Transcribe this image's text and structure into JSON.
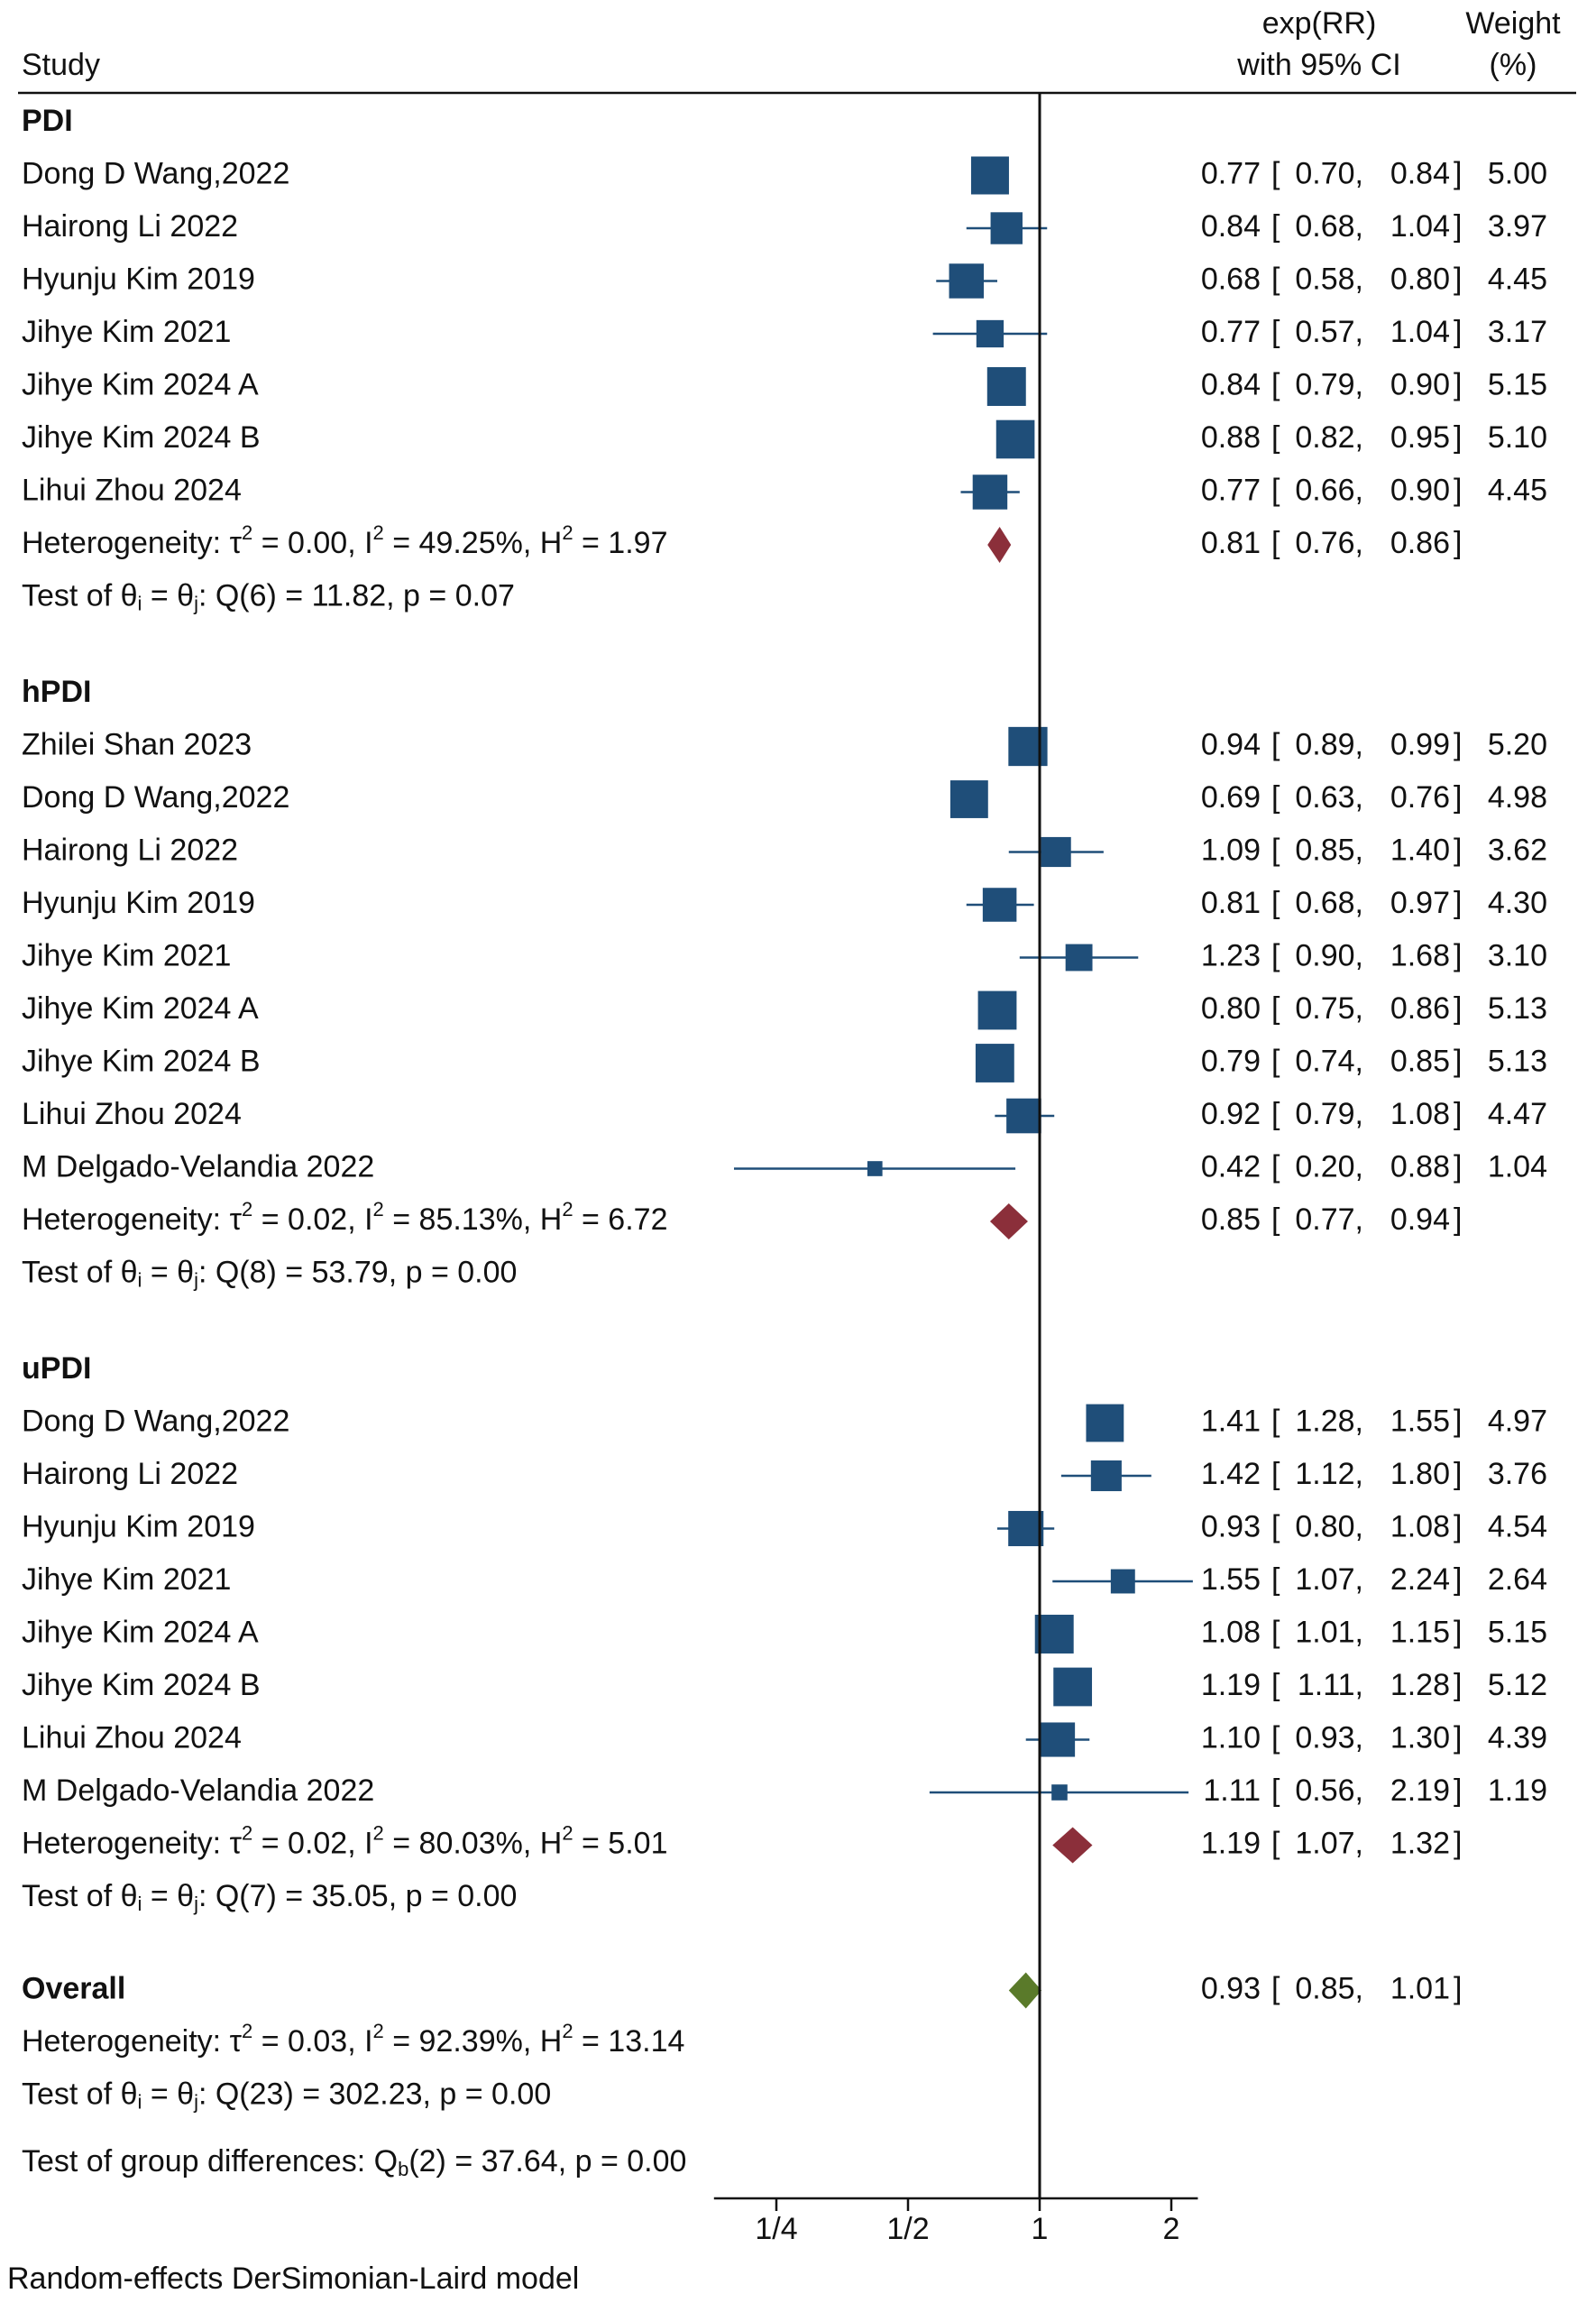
{
  "chart_data": {
    "type": "forest",
    "header": {
      "study": "Study",
      "effect_line1": "exp(RR)",
      "effect_line2": "with 95% CI",
      "weight_line1": "Weight",
      "weight_line2": "(%)"
    },
    "x_axis": {
      "scale": "log2",
      "range": [
        0.18,
        2.3
      ],
      "null_line": 1,
      "ticks": [
        {
          "value": 0.25,
          "label": "1/4"
        },
        {
          "value": 0.5,
          "label": "1/2"
        },
        {
          "value": 1,
          "label": "1"
        },
        {
          "value": 2,
          "label": "2"
        }
      ]
    },
    "colors": {
      "study_marker": "#1f4e79",
      "subgroup_diamond": "#8b2f3a",
      "overall_diamond": "#5a7a2a",
      "line": "#111111"
    },
    "groups": [
      {
        "name": "PDI",
        "studies": [
          {
            "label": "Dong D Wang,2022",
            "rr": 0.77,
            "lo": 0.7,
            "hi": 0.84,
            "rr_text": "0.77",
            "lo_text": "0.70",
            "hi_text": "0.84",
            "weight_text": "5.00",
            "weight": 5.0
          },
          {
            "label": "Hairong Li 2022",
            "rr": 0.84,
            "lo": 0.68,
            "hi": 1.04,
            "rr_text": "0.84",
            "lo_text": "0.68",
            "hi_text": "1.04",
            "weight_text": "3.97",
            "weight": 3.97
          },
          {
            "label": "Hyunju Kim  2019",
            "rr": 0.68,
            "lo": 0.58,
            "hi": 0.8,
            "rr_text": "0.68",
            "lo_text": "0.58",
            "hi_text": "0.80",
            "weight_text": "4.45",
            "weight": 4.45
          },
          {
            "label": "Jihye Kim 2021",
            "rr": 0.77,
            "lo": 0.57,
            "hi": 1.04,
            "rr_text": "0.77",
            "lo_text": "0.57",
            "hi_text": "1.04",
            "weight_text": "3.17",
            "weight": 3.17
          },
          {
            "label": "Jihye Kim 2024 A",
            "rr": 0.84,
            "lo": 0.79,
            "hi": 0.9,
            "rr_text": "0.84",
            "lo_text": "0.79",
            "hi_text": "0.90",
            "weight_text": "5.15",
            "weight": 5.15
          },
          {
            "label": "Jihye Kim 2024 B",
            "rr": 0.88,
            "lo": 0.82,
            "hi": 0.95,
            "rr_text": "0.88",
            "lo_text": "0.82",
            "hi_text": "0.95",
            "weight_text": "5.10",
            "weight": 5.1
          },
          {
            "label": "Lihui Zhou 2024",
            "rr": 0.77,
            "lo": 0.66,
            "hi": 0.9,
            "rr_text": "0.77",
            "lo_text": "0.66",
            "hi_text": "0.90",
            "weight_text": "4.45",
            "weight": 4.45
          }
        ],
        "pooled": {
          "rr": 0.81,
          "lo": 0.76,
          "hi": 0.86,
          "rr_text": "0.81",
          "lo_text": "0.76",
          "hi_text": "0.86"
        },
        "het": {
          "prefix": "Heterogeneity: ",
          "tau": "τ",
          "tau_sup": "2",
          "tau_val": " = 0.00, I",
          "i_sup": "2",
          "i_val": " = 49.25%, H",
          "h_sup": "2",
          "h_val": " = 1.97"
        },
        "test": {
          "prefix": "Test of θ",
          "sub1": "i",
          "mid": " = θ",
          "sub2": "j",
          "rest": ": Q(6) = 11.82, p = 0.07"
        }
      },
      {
        "name": "hPDI",
        "studies": [
          {
            "label": "Zhilei Shan 2023",
            "rr": 0.94,
            "lo": 0.89,
            "hi": 0.99,
            "rr_text": "0.94",
            "lo_text": "0.89",
            "hi_text": "0.99",
            "weight_text": "5.20",
            "weight": 5.2
          },
          {
            "label": "Dong D Wang,2022",
            "rr": 0.69,
            "lo": 0.63,
            "hi": 0.76,
            "rr_text": "0.69",
            "lo_text": "0.63",
            "hi_text": "0.76",
            "weight_text": "4.98",
            "weight": 4.98
          },
          {
            "label": "Hairong Li 2022",
            "rr": 1.09,
            "lo": 0.85,
            "hi": 1.4,
            "rr_text": "1.09",
            "lo_text": "0.85",
            "hi_text": "1.40",
            "weight_text": "3.62",
            "weight": 3.62
          },
          {
            "label": "Hyunju Kim  2019",
            "rr": 0.81,
            "lo": 0.68,
            "hi": 0.97,
            "rr_text": "0.81",
            "lo_text": "0.68",
            "hi_text": "0.97",
            "weight_text": "4.30",
            "weight": 4.3
          },
          {
            "label": "Jihye Kim 2021",
            "rr": 1.23,
            "lo": 0.9,
            "hi": 1.68,
            "rr_text": "1.23",
            "lo_text": "0.90",
            "hi_text": "1.68",
            "weight_text": "3.10",
            "weight": 3.1
          },
          {
            "label": "Jihye Kim 2024 A",
            "rr": 0.8,
            "lo": 0.75,
            "hi": 0.86,
            "rr_text": "0.80",
            "lo_text": "0.75",
            "hi_text": "0.86",
            "weight_text": "5.13",
            "weight": 5.13
          },
          {
            "label": "Jihye Kim 2024 B",
            "rr": 0.79,
            "lo": 0.74,
            "hi": 0.85,
            "rr_text": "0.79",
            "lo_text": "0.74",
            "hi_text": "0.85",
            "weight_text": "5.13",
            "weight": 5.13
          },
          {
            "label": "Lihui Zhou 2024",
            "rr": 0.92,
            "lo": 0.79,
            "hi": 1.08,
            "rr_text": "0.92",
            "lo_text": "0.79",
            "hi_text": "1.08",
            "weight_text": "4.47",
            "weight": 4.47
          },
          {
            "label": "M Delgado-Velandia 2022",
            "rr": 0.42,
            "lo": 0.2,
            "hi": 0.88,
            "rr_text": "0.42",
            "lo_text": "0.20",
            "hi_text": "0.88",
            "weight_text": "1.04",
            "weight": 1.04
          }
        ],
        "pooled": {
          "rr": 0.85,
          "lo": 0.77,
          "hi": 0.94,
          "rr_text": "0.85",
          "lo_text": "0.77",
          "hi_text": "0.94"
        },
        "het": {
          "prefix": "Heterogeneity: ",
          "tau": "τ",
          "tau_sup": "2",
          "tau_val": " = 0.02, I",
          "i_sup": "2",
          "i_val": " = 85.13%, H",
          "h_sup": "2",
          "h_val": " = 6.72"
        },
        "test": {
          "prefix": "Test of θ",
          "sub1": "i",
          "mid": " = θ",
          "sub2": "j",
          "rest": ": Q(8) = 53.79, p = 0.00"
        }
      },
      {
        "name": "uPDI",
        "studies": [
          {
            "label": "Dong D Wang,2022",
            "rr": 1.41,
            "lo": 1.28,
            "hi": 1.55,
            "rr_text": "1.41",
            "lo_text": "1.28",
            "hi_text": "1.55",
            "weight_text": "4.97",
            "weight": 4.97
          },
          {
            "label": "Hairong Li 2022",
            "rr": 1.42,
            "lo": 1.12,
            "hi": 1.8,
            "rr_text": "1.42",
            "lo_text": "1.12",
            "hi_text": "1.80",
            "weight_text": "3.76",
            "weight": 3.76
          },
          {
            "label": "Hyunju Kim  2019",
            "rr": 0.93,
            "lo": 0.8,
            "hi": 1.08,
            "rr_text": "0.93",
            "lo_text": "0.80",
            "hi_text": "1.08",
            "weight_text": "4.54",
            "weight": 4.54
          },
          {
            "label": "Jihye Kim 2021",
            "rr": 1.55,
            "lo": 1.07,
            "hi": 2.24,
            "rr_text": "1.55",
            "lo_text": "1.07",
            "hi_text": "2.24",
            "weight_text": "2.64",
            "weight": 2.64
          },
          {
            "label": "Jihye Kim 2024 A",
            "rr": 1.08,
            "lo": 1.01,
            "hi": 1.15,
            "rr_text": "1.08",
            "lo_text": "1.01",
            "hi_text": "1.15",
            "weight_text": "5.15",
            "weight": 5.15
          },
          {
            "label": "Jihye Kim 2024 B",
            "rr": 1.19,
            "lo": 1.11,
            "hi": 1.28,
            "rr_text": "1.19",
            "lo_text": "1.11",
            "hi_text": "1.28",
            "weight_text": "5.12",
            "weight": 5.12
          },
          {
            "label": "Lihui Zhou 2024",
            "rr": 1.1,
            "lo": 0.93,
            "hi": 1.3,
            "rr_text": "1.10",
            "lo_text": "0.93",
            "hi_text": "1.30",
            "weight_text": "4.39",
            "weight": 4.39
          },
          {
            "label": "M Delgado-Velandia 2022",
            "rr": 1.11,
            "lo": 0.56,
            "hi": 2.19,
            "rr_text": "1.11",
            "lo_text": "0.56",
            "hi_text": "2.19",
            "weight_text": "1.19",
            "weight": 1.19
          }
        ],
        "pooled": {
          "rr": 1.19,
          "lo": 1.07,
          "hi": 1.32,
          "rr_text": "1.19",
          "lo_text": "1.07",
          "hi_text": "1.32"
        },
        "het": {
          "prefix": "Heterogeneity: ",
          "tau": "τ",
          "tau_sup": "2",
          "tau_val": " = 0.02, I",
          "i_sup": "2",
          "i_val": " = 80.03%, H",
          "h_sup": "2",
          "h_val": " = 5.01"
        },
        "test": {
          "prefix": "Test of θ",
          "sub1": "i",
          "mid": " = θ",
          "sub2": "j",
          "rest": ": Q(7) = 35.05, p = 0.00"
        }
      }
    ],
    "overall": {
      "label": "Overall",
      "rr": 0.93,
      "lo": 0.85,
      "hi": 1.01,
      "rr_text": "0.93",
      "lo_text": "0.85",
      "hi_text": "1.01",
      "het": {
        "prefix": "Heterogeneity: ",
        "tau": "τ",
        "tau_sup": "2",
        "tau_val": " = 0.03, I",
        "i_sup": "2",
        "i_val": " = 92.39%, H",
        "h_sup": "2",
        "h_val": " = 13.14"
      },
      "test": {
        "prefix": "Test of θ",
        "sub1": "i",
        "mid": " = θ",
        "sub2": "j",
        "rest": ": Q(23) = 302.23, p = 0.00"
      },
      "group_diff": {
        "prefix": "Test of group differences: Q",
        "sub": "b",
        "rest": "(2) = 37.64, p = 0.00"
      }
    },
    "footnote": "Random-effects DerSimonian-Laird model"
  }
}
